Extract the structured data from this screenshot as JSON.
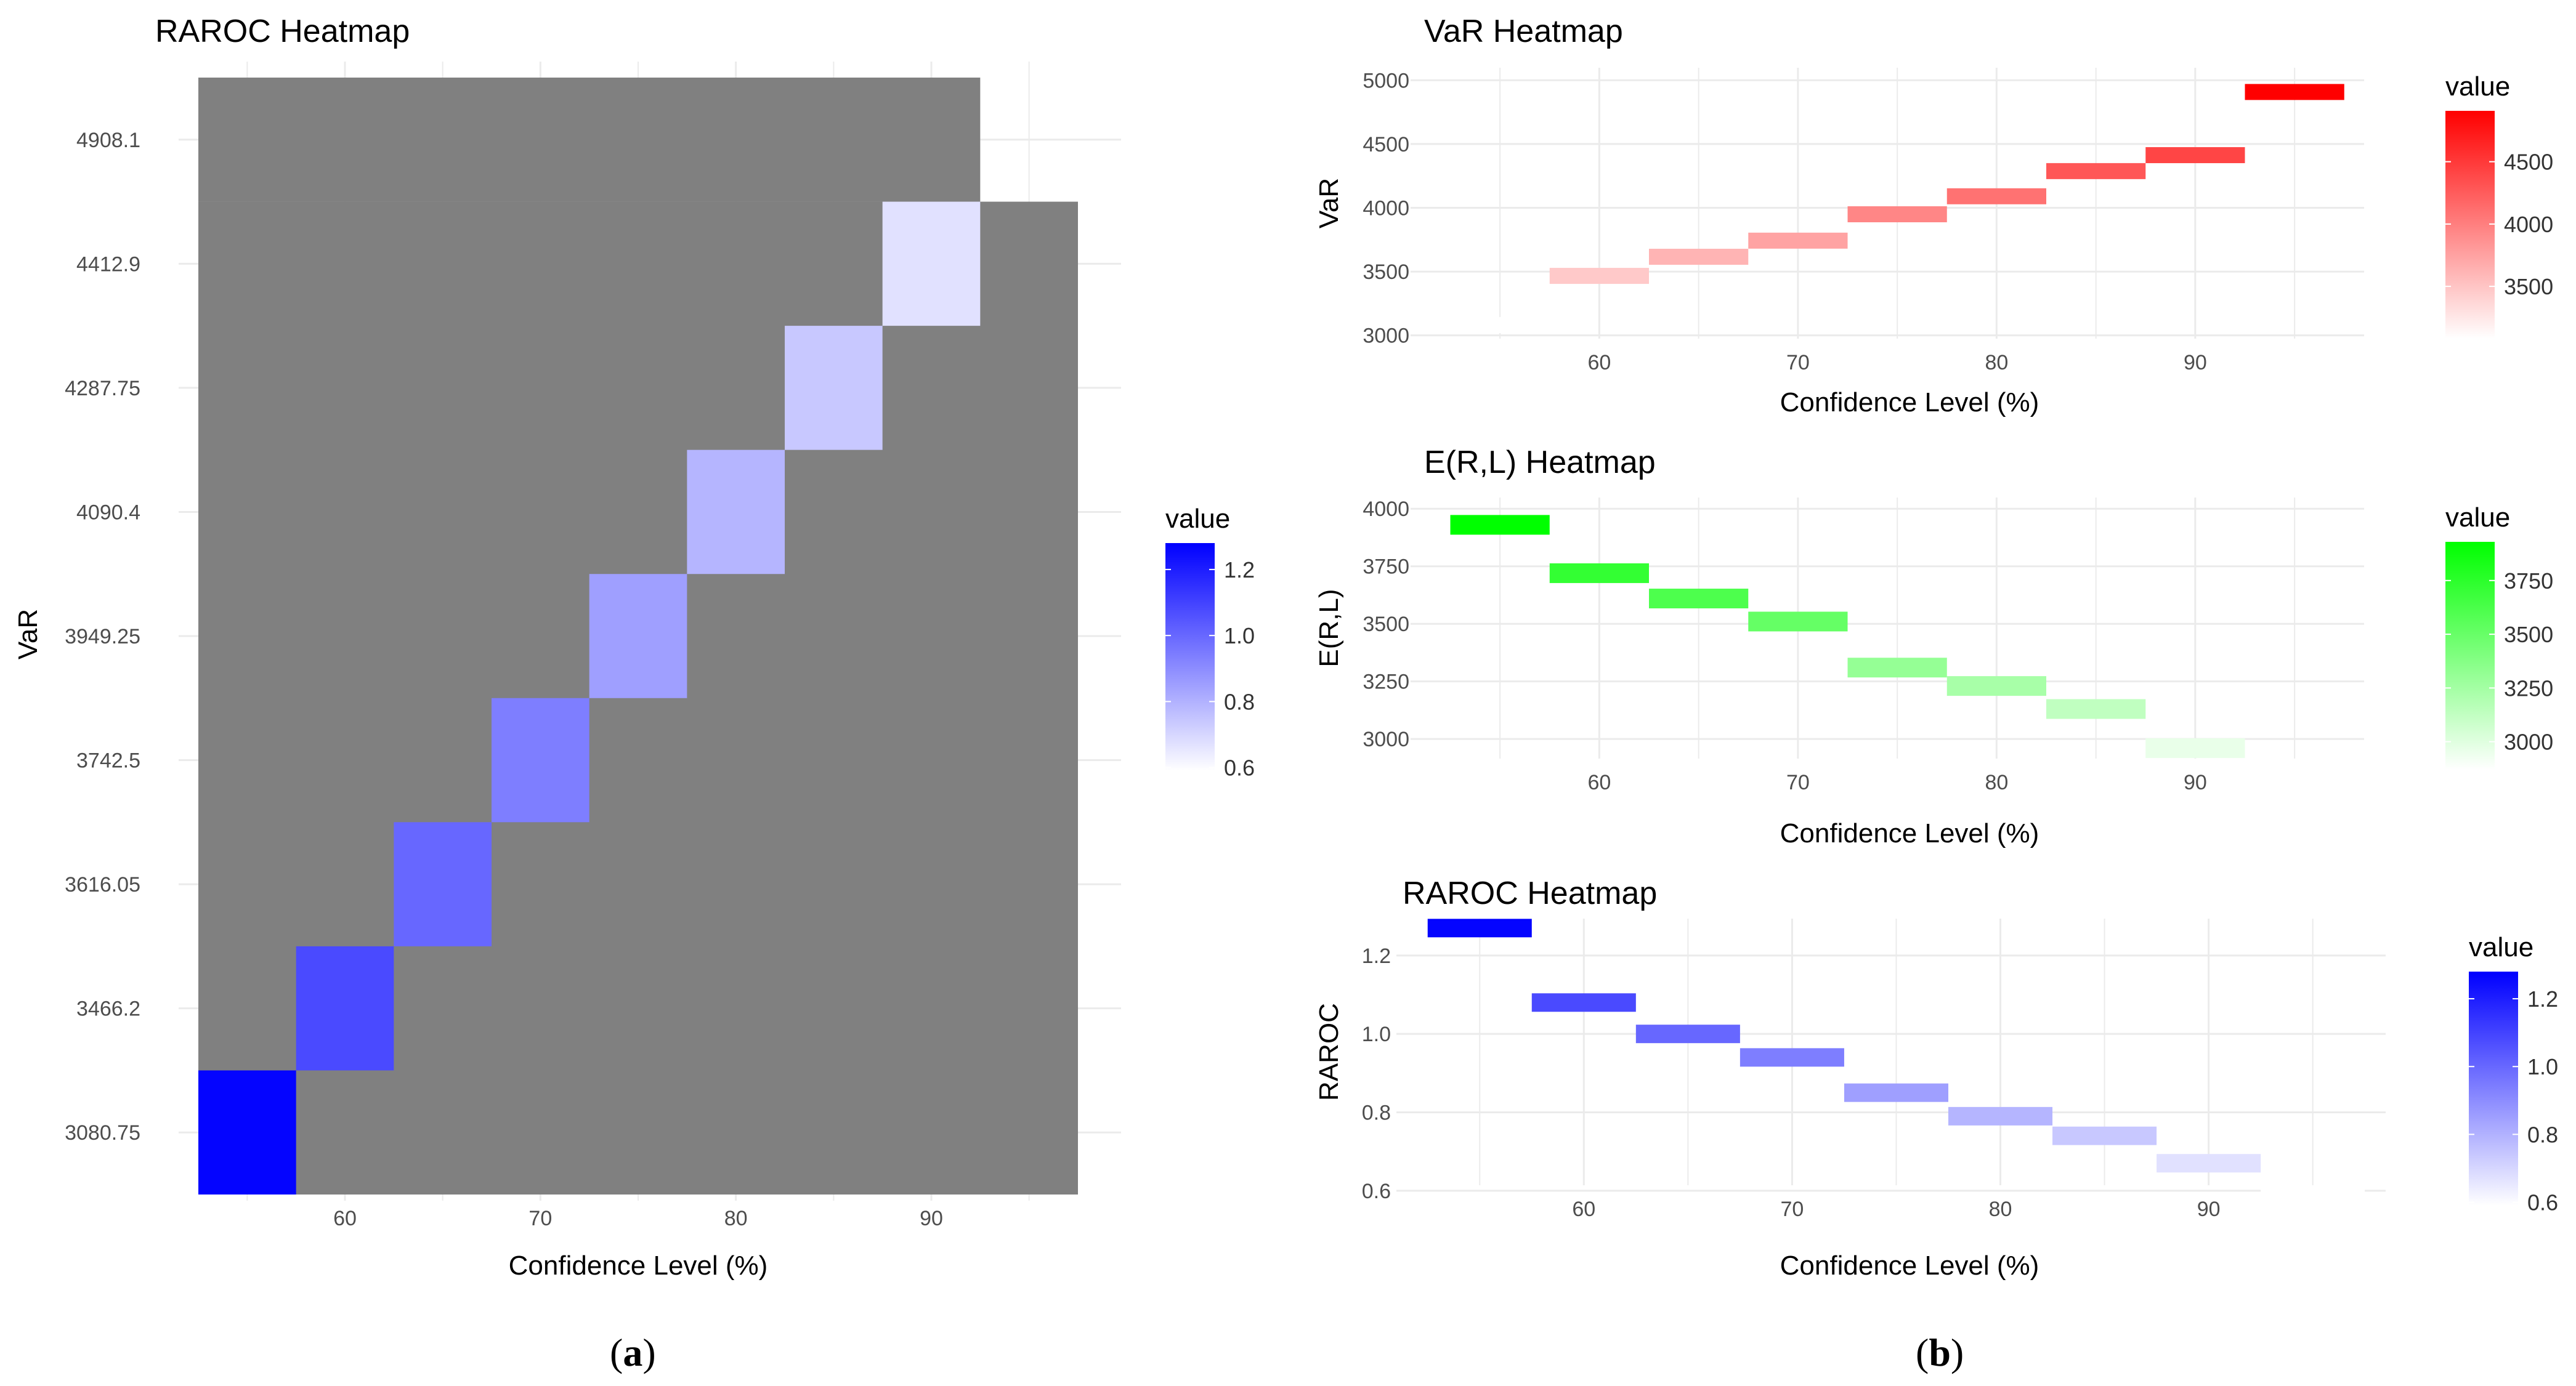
{
  "chart_data": [
    {
      "panel": "(a)",
      "type": "heatmap",
      "title": "RAROC Heatmap",
      "xlabel": "Confidence Level (%)",
      "ylabel": "VaR",
      "x_tick_labels": [
        "60",
        "70",
        "80",
        "90"
      ],
      "xlim": [
        52.5,
        97.5
      ],
      "y_categories": [
        "3080.75",
        "3466.2",
        "3616.05",
        "3742.5",
        "3949.25",
        "4090.4",
        "4287.75",
        "4412.9",
        "4908.1"
      ],
      "na_color": "#808080",
      "cells": [
        {
          "x": 55,
          "y": "3080.75",
          "value": 1.27
        },
        {
          "x": 60,
          "y": "3466.2",
          "value": 1.08
        },
        {
          "x": 65,
          "y": "3616.05",
          "value": 1.0
        },
        {
          "x": 70,
          "y": "3742.5",
          "value": 0.94
        },
        {
          "x": 75,
          "y": "3949.25",
          "value": 0.85
        },
        {
          "x": 80,
          "y": "4090.4",
          "value": 0.79
        },
        {
          "x": 85,
          "y": "4287.75",
          "value": 0.74
        },
        {
          "x": 90,
          "y": "4412.9",
          "value": 0.67
        },
        {
          "x": 95,
          "y": "4908.1",
          "value": 0.59
        }
      ],
      "legend": {
        "title": "value",
        "low_color": "#ffffff",
        "high_color": "#0000ff",
        "min": 0.59,
        "max": 1.28,
        "ticks": [
          "0.6",
          "0.8",
          "1.0",
          "1.2"
        ],
        "tick_values": [
          0.6,
          0.8,
          1.0,
          1.2
        ]
      }
    },
    {
      "panel": "(b)",
      "type": "heatmap",
      "title": "VaR Heatmap",
      "xlabel": "Confidence Level (%)",
      "ylabel": "VaR",
      "x_tick_labels": [
        "60",
        "70",
        "80",
        "90"
      ],
      "xlim": [
        50.5,
        98.5
      ],
      "ylim": [
        2950,
        5050
      ],
      "y_ticks": [
        3000,
        3500,
        4000,
        4500,
        5000
      ],
      "cells": [
        {
          "x": 55,
          "value": 3080.75
        },
        {
          "x": 60,
          "value": 3466.2
        },
        {
          "x": 65,
          "value": 3616.05
        },
        {
          "x": 70,
          "value": 3742.5
        },
        {
          "x": 75,
          "value": 3949.25
        },
        {
          "x": 80,
          "value": 4090.4
        },
        {
          "x": 85,
          "value": 4287.75
        },
        {
          "x": 90,
          "value": 4412.9
        },
        {
          "x": 95,
          "value": 4908.1
        }
      ],
      "legend": {
        "title": "value",
        "low_color": "#ffffff",
        "high_color": "#ff0000",
        "min": 3080.75,
        "max": 4908.1,
        "ticks": [
          "3500",
          "4000",
          "4500"
        ],
        "tick_values": [
          3500,
          4000,
          4500
        ]
      }
    },
    {
      "panel": "(b)",
      "type": "heatmap",
      "title": "E(R,L) Heatmap",
      "xlabel": "Confidence Level (%)",
      "ylabel": "E(R,L)",
      "x_tick_labels": [
        "60",
        "70",
        "80",
        "90"
      ],
      "xlim": [
        50.5,
        98.5
      ],
      "ylim": [
        2880,
        4030
      ],
      "y_ticks": [
        3000,
        3250,
        3500,
        3750,
        4000
      ],
      "cells": [
        {
          "x": 55,
          "value": 3930
        },
        {
          "x": 60,
          "value": 3720
        },
        {
          "x": 65,
          "value": 3610
        },
        {
          "x": 70,
          "value": 3510
        },
        {
          "x": 75,
          "value": 3310
        },
        {
          "x": 80,
          "value": 3230
        },
        {
          "x": 85,
          "value": 3130
        },
        {
          "x": 90,
          "value": 2960
        },
        {
          "x": 95,
          "value": 2870
        }
      ],
      "legend": {
        "title": "value",
        "low_color": "#ffffff",
        "high_color": "#00ff00",
        "min": 2870,
        "max": 3930,
        "ticks": [
          "3000",
          "3250",
          "3500",
          "3750"
        ],
        "tick_values": [
          3000,
          3250,
          3500,
          3750
        ]
      }
    },
    {
      "panel": "(b)",
      "type": "heatmap",
      "title": "RAROC Heatmap",
      "xlabel": "Confidence Level (%)",
      "ylabel": "RAROC",
      "x_tick_labels": [
        "60",
        "70",
        "80",
        "90"
      ],
      "xlim": [
        51,
        98.5
      ],
      "ylim": [
        0.595,
        1.305
      ],
      "y_ticks": [
        0.6,
        0.8,
        1.0,
        1.2
      ],
      "y_tick_labels": [
        "0.6",
        "0.8",
        "1.0",
        "1.2"
      ],
      "cells": [
        {
          "x": 55,
          "value": 1.27
        },
        {
          "x": 60,
          "value": 1.08
        },
        {
          "x": 65,
          "value": 1.0
        },
        {
          "x": 70,
          "value": 0.94
        },
        {
          "x": 75,
          "value": 0.85
        },
        {
          "x": 80,
          "value": 0.79
        },
        {
          "x": 85,
          "value": 0.74
        },
        {
          "x": 90,
          "value": 0.67
        },
        {
          "x": 95,
          "value": 0.59
        }
      ],
      "legend": {
        "title": "value",
        "low_color": "#ffffff",
        "high_color": "#0000ff",
        "min": 0.59,
        "max": 1.28,
        "ticks": [
          "0.6",
          "0.8",
          "1.0",
          "1.2"
        ],
        "tick_values": [
          0.6,
          0.8,
          1.0,
          1.2
        ]
      }
    }
  ],
  "captions": {
    "a": "a",
    "b": "b"
  }
}
